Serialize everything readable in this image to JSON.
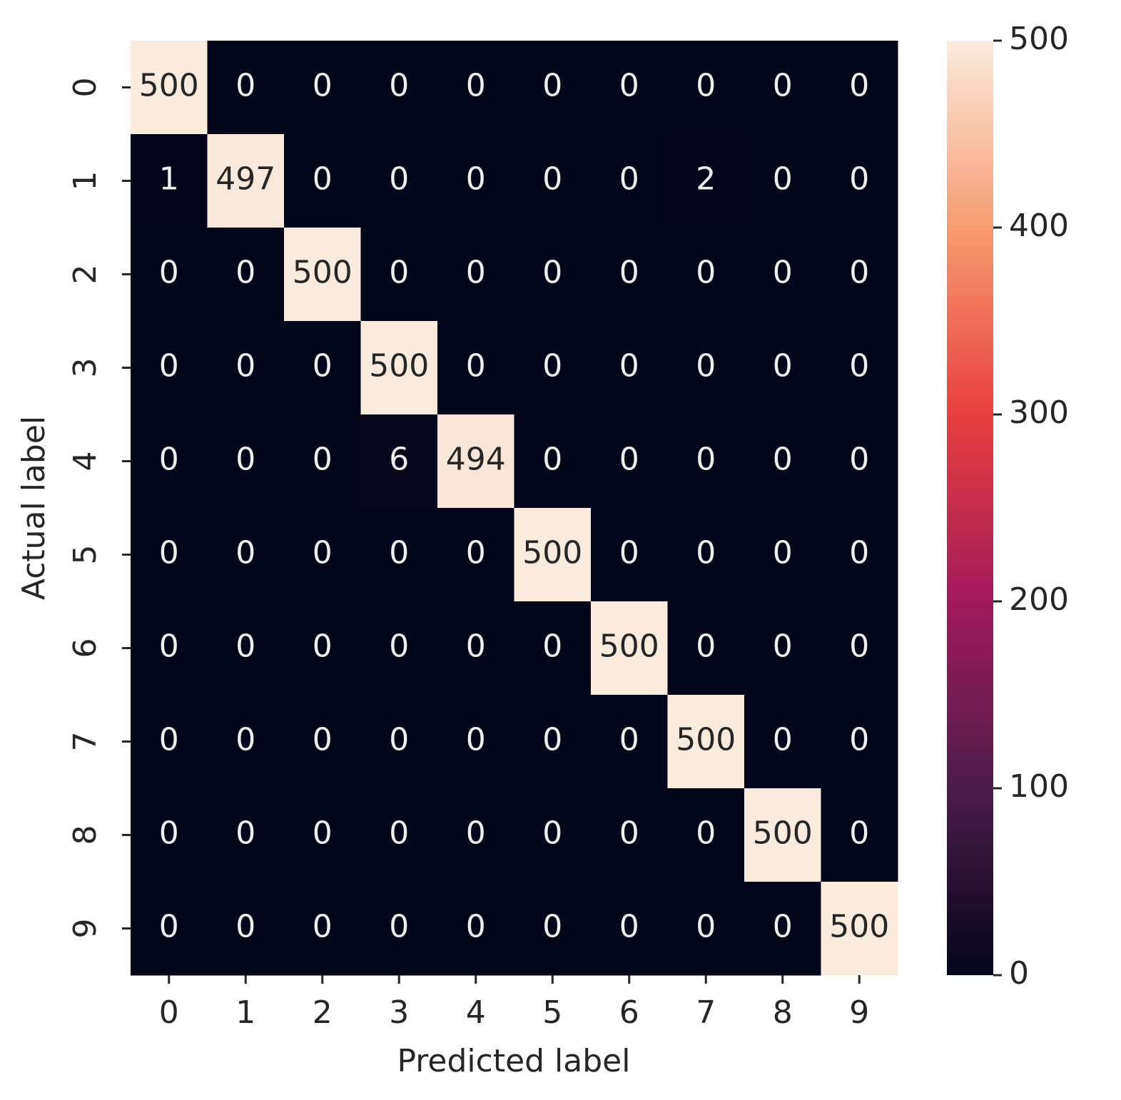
{
  "chart_data": {
    "type": "heatmap",
    "xlabel": "Predicted label",
    "ylabel": "Actual label",
    "x_categories": [
      "0",
      "1",
      "2",
      "3",
      "4",
      "5",
      "6",
      "7",
      "8",
      "9"
    ],
    "y_categories": [
      "0",
      "1",
      "2",
      "3",
      "4",
      "5",
      "6",
      "7",
      "8",
      "9"
    ],
    "values": [
      [
        500,
        0,
        0,
        0,
        0,
        0,
        0,
        0,
        0,
        0
      ],
      [
        1,
        497,
        0,
        0,
        0,
        0,
        0,
        2,
        0,
        0
      ],
      [
        0,
        0,
        500,
        0,
        0,
        0,
        0,
        0,
        0,
        0
      ],
      [
        0,
        0,
        0,
        500,
        0,
        0,
        0,
        0,
        0,
        0
      ],
      [
        0,
        0,
        0,
        6,
        494,
        0,
        0,
        0,
        0,
        0
      ],
      [
        0,
        0,
        0,
        0,
        0,
        500,
        0,
        0,
        0,
        0
      ],
      [
        0,
        0,
        0,
        0,
        0,
        0,
        500,
        0,
        0,
        0
      ],
      [
        0,
        0,
        0,
        0,
        0,
        0,
        0,
        500,
        0,
        0
      ],
      [
        0,
        0,
        0,
        0,
        0,
        0,
        0,
        0,
        500,
        0
      ],
      [
        0,
        0,
        0,
        0,
        0,
        0,
        0,
        0,
        0,
        500
      ]
    ],
    "colorscale": [
      "#03051a",
      "#4c1d4b",
      "#a11a5b",
      "#e83f3f",
      "#f69c73",
      "#faebdd"
    ],
    "clim": [
      0,
      500
    ],
    "cticks": [
      0,
      100,
      200,
      300,
      400,
      500
    ]
  }
}
